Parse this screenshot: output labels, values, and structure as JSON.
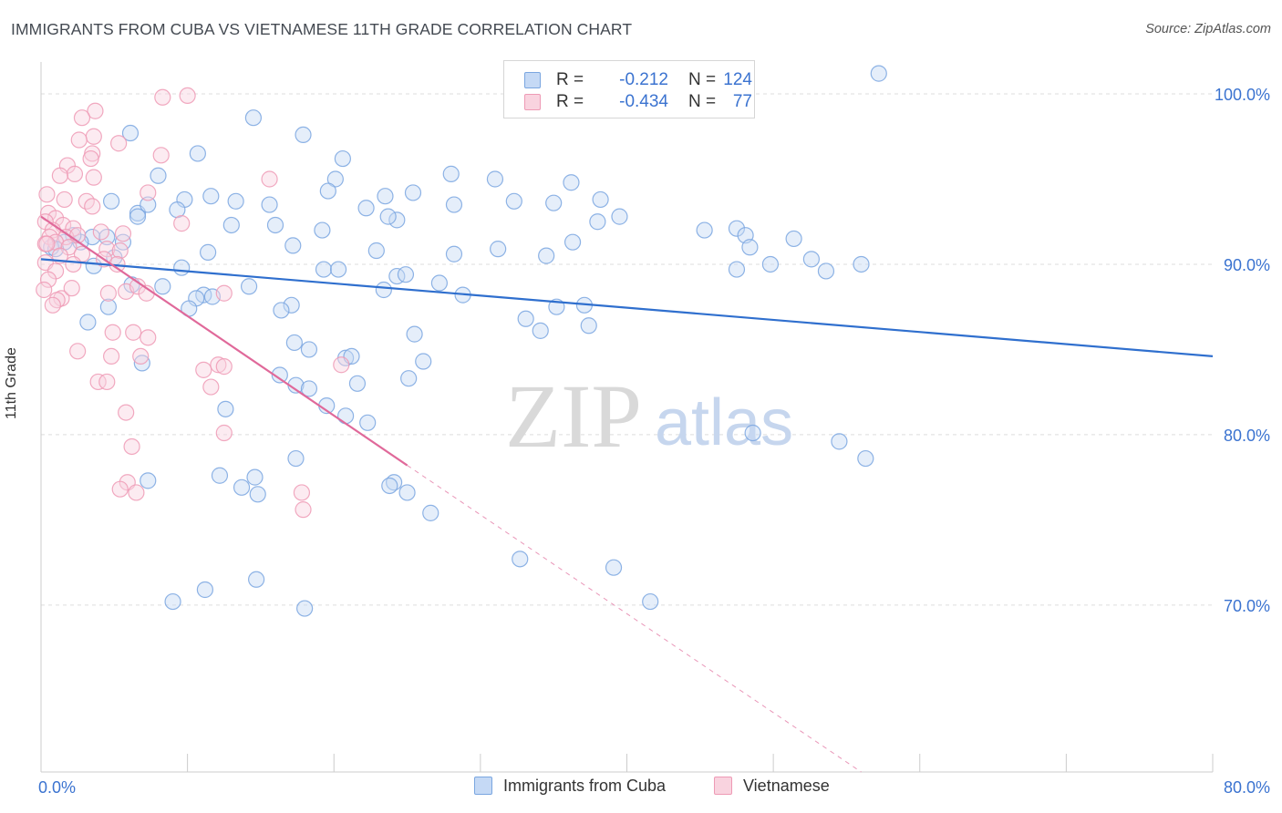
{
  "title": "IMMIGRANTS FROM CUBA VS VIETNAMESE 11TH GRADE CORRELATION CHART",
  "source": "Source: ZipAtlas.com",
  "watermark": {
    "zip": "ZIP",
    "atlas": "atlas"
  },
  "legend_top": {
    "rows": [
      {
        "r_label": "R =",
        "r_value": "-0.212",
        "n_label": "N =",
        "n_value": "124",
        "color": "#7aa6e0",
        "fill": "#c5d9f5"
      },
      {
        "r_label": "R =",
        "r_value": "-0.434",
        "n_label": "N =",
        "n_value": "77",
        "color": "#ee9ab5",
        "fill": "#f9d3df"
      }
    ]
  },
  "legend_bottom": {
    "items": [
      {
        "label": "Immigrants from Cuba",
        "color": "#7aa6e0",
        "fill": "#c5d9f5"
      },
      {
        "label": "Vietnamese",
        "color": "#ee9ab5",
        "fill": "#f9d3df"
      }
    ]
  },
  "chart_data": {
    "type": "scatter",
    "title": "IMMIGRANTS FROM CUBA VS VIETNAMESE 11TH GRADE CORRELATION CHART",
    "xlabel": "",
    "ylabel": "11th Grade",
    "xlim": [
      0,
      80
    ],
    "ylim": [
      60.2,
      101.5
    ],
    "x_tick_labels": [
      {
        "value": 0,
        "label": "0.0%"
      },
      {
        "value": 80,
        "label": "80.0%"
      }
    ],
    "y_tick_labels": [
      {
        "value": 100,
        "label": "100.0%"
      },
      {
        "value": 90,
        "label": "90.0%"
      },
      {
        "value": 80,
        "label": "80.0%"
      },
      {
        "value": 70,
        "label": "70.0%"
      }
    ],
    "grid": true,
    "series": [
      {
        "name": "Immigrants from Cuba",
        "color": "#7aa6e0",
        "fill": "#c5d9f5",
        "trend": {
          "x0": 0,
          "y0": 90.3,
          "x1": 80,
          "y1": 84.6,
          "dashed_to": null
        },
        "points": [
          [
            57.2,
            101.2
          ],
          [
            14.5,
            98.6
          ],
          [
            6.1,
            97.7
          ],
          [
            17.9,
            97.6
          ],
          [
            10.7,
            96.5
          ],
          [
            20.6,
            96.2
          ],
          [
            20.1,
            95.0
          ],
          [
            8.0,
            95.2
          ],
          [
            28.0,
            95.3
          ],
          [
            31.0,
            95.0
          ],
          [
            11.6,
            94.0
          ],
          [
            19.6,
            94.3
          ],
          [
            23.5,
            94.0
          ],
          [
            25.4,
            94.2
          ],
          [
            4.8,
            93.7
          ],
          [
            6.6,
            93.0
          ],
          [
            7.3,
            93.5
          ],
          [
            9.8,
            93.8
          ],
          [
            13.3,
            93.7
          ],
          [
            15.6,
            93.5
          ],
          [
            9.3,
            93.2
          ],
          [
            22.2,
            93.3
          ],
          [
            28.2,
            93.5
          ],
          [
            32.3,
            93.7
          ],
          [
            38.2,
            93.8
          ],
          [
            36.2,
            94.8
          ],
          [
            35.0,
            93.6
          ],
          [
            24.3,
            92.6
          ],
          [
            23.7,
            92.8
          ],
          [
            38.0,
            92.5
          ],
          [
            39.5,
            92.8
          ],
          [
            45.3,
            92.0
          ],
          [
            6.6,
            92.8
          ],
          [
            13.0,
            92.3
          ],
          [
            19.2,
            92.0
          ],
          [
            16.0,
            92.3
          ],
          [
            47.5,
            92.1
          ],
          [
            48.1,
            91.7
          ],
          [
            51.4,
            91.5
          ],
          [
            3.5,
            91.6
          ],
          [
            4.5,
            91.6
          ],
          [
            2.7,
            91.3
          ],
          [
            2.2,
            91.7
          ],
          [
            1.6,
            91.3
          ],
          [
            0.7,
            91.0
          ],
          [
            5.6,
            91.3
          ],
          [
            17.2,
            91.1
          ],
          [
            11.4,
            90.7
          ],
          [
            22.9,
            90.8
          ],
          [
            28.2,
            90.6
          ],
          [
            31.2,
            90.9
          ],
          [
            34.5,
            90.5
          ],
          [
            36.3,
            91.3
          ],
          [
            47.5,
            89.7
          ],
          [
            48.4,
            91.0
          ],
          [
            49.8,
            90.0
          ],
          [
            52.6,
            90.3
          ],
          [
            56.0,
            90.0
          ],
          [
            53.6,
            89.6
          ],
          [
            3.6,
            89.9
          ],
          [
            5.0,
            90.4
          ],
          [
            9.6,
            89.8
          ],
          [
            19.3,
            89.7
          ],
          [
            20.3,
            89.7
          ],
          [
            24.3,
            89.3
          ],
          [
            24.9,
            89.4
          ],
          [
            27.2,
            88.9
          ],
          [
            6.2,
            88.8
          ],
          [
            8.3,
            88.7
          ],
          [
            14.2,
            88.7
          ],
          [
            11.1,
            88.2
          ],
          [
            11.7,
            88.1
          ],
          [
            17.1,
            87.6
          ],
          [
            28.8,
            88.2
          ],
          [
            23.4,
            88.5
          ],
          [
            10.6,
            88.0
          ],
          [
            10.1,
            87.4
          ],
          [
            16.4,
            87.3
          ],
          [
            35.2,
            87.5
          ],
          [
            34.1,
            86.1
          ],
          [
            4.6,
            87.5
          ],
          [
            3.2,
            86.6
          ],
          [
            33.1,
            86.8
          ],
          [
            37.4,
            86.4
          ],
          [
            37.1,
            87.6
          ],
          [
            25.5,
            85.9
          ],
          [
            17.3,
            85.4
          ],
          [
            18.3,
            85.0
          ],
          [
            20.8,
            84.5
          ],
          [
            21.2,
            84.6
          ],
          [
            26.1,
            84.3
          ],
          [
            6.9,
            84.2
          ],
          [
            25.1,
            83.3
          ],
          [
            16.3,
            83.5
          ],
          [
            17.4,
            82.9
          ],
          [
            18.3,
            82.7
          ],
          [
            21.6,
            83.0
          ],
          [
            12.6,
            81.5
          ],
          [
            19.5,
            81.7
          ],
          [
            20.8,
            81.1
          ],
          [
            22.3,
            80.7
          ],
          [
            48.6,
            80.1
          ],
          [
            54.5,
            79.6
          ],
          [
            17.4,
            78.6
          ],
          [
            56.3,
            78.6
          ],
          [
            7.3,
            77.3
          ],
          [
            12.2,
            77.6
          ],
          [
            13.7,
            76.9
          ],
          [
            14.6,
            77.5
          ],
          [
            14.8,
            76.5
          ],
          [
            24.1,
            77.2
          ],
          [
            23.8,
            77.0
          ],
          [
            25.0,
            76.6
          ],
          [
            26.6,
            75.4
          ],
          [
            32.7,
            72.7
          ],
          [
            41.6,
            70.2
          ],
          [
            39.1,
            72.2
          ],
          [
            14.7,
            71.5
          ],
          [
            11.2,
            70.9
          ],
          [
            9.0,
            70.2
          ],
          [
            18.0,
            69.8
          ],
          [
            1.0,
            90.9
          ]
        ]
      },
      {
        "name": "Vietnamese",
        "color": "#ee9ab5",
        "fill": "#f9d3df",
        "trend": {
          "x0": 0,
          "y0": 92.8,
          "x1": 25.0,
          "y1": 78.2,
          "dashed_to": {
            "x": 56.0,
            "y": 60.2
          }
        },
        "points": [
          [
            10.0,
            99.9
          ],
          [
            8.3,
            99.8
          ],
          [
            3.7,
            99.0
          ],
          [
            2.8,
            98.6
          ],
          [
            5.3,
            97.1
          ],
          [
            3.6,
            97.5
          ],
          [
            2.6,
            97.3
          ],
          [
            8.2,
            96.4
          ],
          [
            3.5,
            96.5
          ],
          [
            3.4,
            96.2
          ],
          [
            1.8,
            95.8
          ],
          [
            2.3,
            95.3
          ],
          [
            1.3,
            95.2
          ],
          [
            3.6,
            95.1
          ],
          [
            7.3,
            94.2
          ],
          [
            0.4,
            94.1
          ],
          [
            3.1,
            93.7
          ],
          [
            1.6,
            93.8
          ],
          [
            3.5,
            93.4
          ],
          [
            0.5,
            93.0
          ],
          [
            1.0,
            92.7
          ],
          [
            9.6,
            92.4
          ],
          [
            0.3,
            92.5
          ],
          [
            1.5,
            92.3
          ],
          [
            2.2,
            92.1
          ],
          [
            0.8,
            92.0
          ],
          [
            4.1,
            91.9
          ],
          [
            5.6,
            91.8
          ],
          [
            0.6,
            91.6
          ],
          [
            1.7,
            91.6
          ],
          [
            2.5,
            91.7
          ],
          [
            1.0,
            91.3
          ],
          [
            0.3,
            91.2
          ],
          [
            1.9,
            91.0
          ],
          [
            4.5,
            90.9
          ],
          [
            5.4,
            90.8
          ],
          [
            2.8,
            90.6
          ],
          [
            1.3,
            90.5
          ],
          [
            4.3,
            90.3
          ],
          [
            5.2,
            90.0
          ],
          [
            2.2,
            90.0
          ],
          [
            0.3,
            90.1
          ],
          [
            15.6,
            95.0
          ],
          [
            1.0,
            89.6
          ],
          [
            0.5,
            89.1
          ],
          [
            0.2,
            88.5
          ],
          [
            1.4,
            88.0
          ],
          [
            4.6,
            88.3
          ],
          [
            5.8,
            88.4
          ],
          [
            2.1,
            88.6
          ],
          [
            6.6,
            88.7
          ],
          [
            7.2,
            88.3
          ],
          [
            12.5,
            88.3
          ],
          [
            1.1,
            87.9
          ],
          [
            0.8,
            87.6
          ],
          [
            4.9,
            86.0
          ],
          [
            6.3,
            86.0
          ],
          [
            7.3,
            85.7
          ],
          [
            2.5,
            84.9
          ],
          [
            4.8,
            84.6
          ],
          [
            6.8,
            84.6
          ],
          [
            12.1,
            84.1
          ],
          [
            12.5,
            84.0
          ],
          [
            20.5,
            84.1
          ],
          [
            3.9,
            83.1
          ],
          [
            4.5,
            83.1
          ],
          [
            11.1,
            83.8
          ],
          [
            11.6,
            82.8
          ],
          [
            5.8,
            81.3
          ],
          [
            12.5,
            80.1
          ],
          [
            6.2,
            79.3
          ],
          [
            5.9,
            77.2
          ],
          [
            5.4,
            76.8
          ],
          [
            17.8,
            76.6
          ],
          [
            17.9,
            75.6
          ],
          [
            6.5,
            76.6
          ],
          [
            0.4,
            91.2
          ]
        ]
      }
    ]
  }
}
